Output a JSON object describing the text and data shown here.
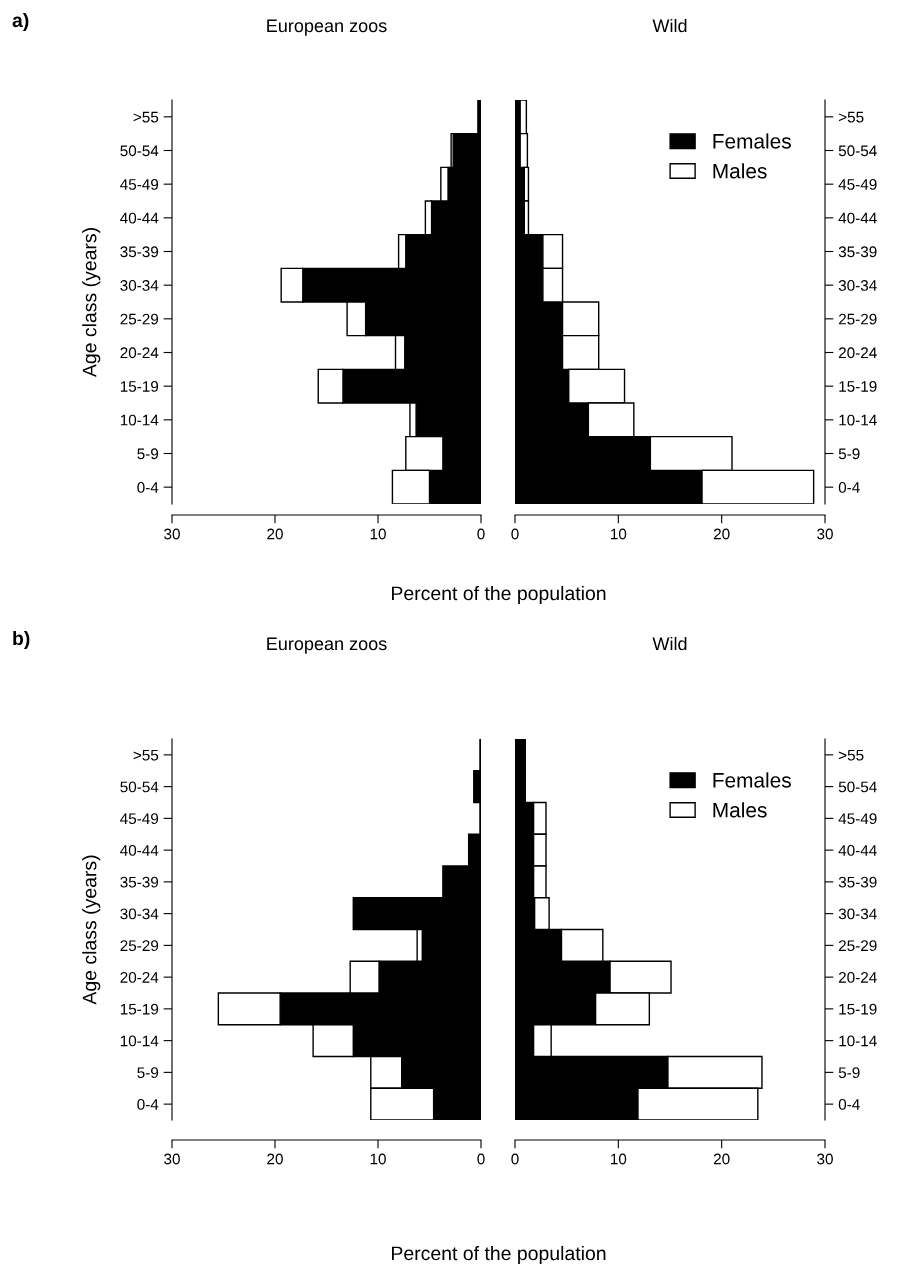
{
  "chart_data": [
    {
      "type": "bar",
      "orientation": "horizontal",
      "stacked": true,
      "title": "European zoos",
      "xlabel": "Percent of the population",
      "ylabel": "Age class (years)",
      "annotations": [
        "a)"
      ],
      "categories": [
        ">55",
        "50-54",
        "45-49",
        "40-44",
        "35-39",
        "30-34",
        "25-29",
        "20-24",
        "15-19",
        "10-14",
        "5-9",
        "0-4"
      ],
      "series": [
        {
          "color": "#000000",
          "values": [
            0.3,
            2.7,
            3.2,
            4.8,
            7.3,
            17.3,
            11.2,
            7.4,
            13.4,
            6.3,
            3.7,
            5.0
          ]
        },
        {
          "color": "#ffffff",
          "values": [
            null,
            0.2,
            0.7,
            0.6,
            0.7,
            2.1,
            1.8,
            0.9,
            2.4,
            0.6,
            3.6,
            3.6
          ]
        }
      ],
      "xlim": [
        30,
        0
      ],
      "xticks": [
        30,
        20,
        10,
        0
      ]
    },
    {
      "type": "bar",
      "orientation": "horizontal",
      "stacked": true,
      "title": "Wild",
      "legend": "top right",
      "categories": [
        ">55",
        "50-54",
        "45-49",
        "40-44",
        "35-39",
        "30-34",
        "25-29",
        "20-24",
        "15-19",
        "10-14",
        "5-9",
        "0-4"
      ],
      "series": [
        {
          "name": "Females",
          "color": "#000000",
          "values": [
            0.5,
            0.5,
            0.9,
            0.9,
            2.7,
            2.7,
            4.6,
            4.6,
            5.2,
            7.1,
            13.1,
            18.1
          ]
        },
        {
          "name": "Males",
          "color": "#ffffff",
          "values": [
            0.6,
            0.7,
            0.4,
            0.4,
            1.9,
            1.9,
            3.5,
            3.5,
            5.4,
            4.4,
            7.9,
            10.8
          ]
        }
      ],
      "xlim": [
        0,
        30
      ],
      "xticks": [
        0,
        10,
        20,
        30
      ]
    },
    {
      "type": "bar",
      "orientation": "horizontal",
      "stacked": true,
      "title": "European zoos",
      "xlabel": "Percent of the population",
      "ylabel": "Age class (years)",
      "annotations": [
        "b)"
      ],
      "categories": [
        ">55",
        "50-54",
        "45-49",
        "40-44",
        "35-39",
        "30-34",
        "25-29",
        "20-24",
        "15-19",
        "10-14",
        "5-9",
        "0-4"
      ],
      "series": [
        {
          "color": "#000000",
          "values": [
            0.1,
            0.7,
            0.1,
            1.2,
            3.7,
            12.4,
            5.7,
            9.9,
            19.5,
            12.4,
            7.7,
            4.6
          ]
        },
        {
          "color": "#ffffff",
          "values": [
            null,
            null,
            null,
            null,
            null,
            null,
            0.5,
            2.8,
            6.0,
            3.9,
            3.0,
            6.1
          ]
        }
      ],
      "xlim": [
        30,
        0
      ],
      "xticks": [
        30,
        20,
        10,
        0
      ]
    },
    {
      "type": "bar",
      "orientation": "horizontal",
      "stacked": true,
      "title": "Wild",
      "legend": "top right",
      "categories": [
        ">55",
        "50-54",
        "45-49",
        "40-44",
        "35-39",
        "30-34",
        "25-29",
        "20-24",
        "15-19",
        "10-14",
        "5-9",
        "0-4"
      ],
      "series": [
        {
          "name": "Females",
          "color": "#000000",
          "values": [
            1.0,
            1.0,
            1.8,
            1.8,
            1.8,
            1.9,
            4.5,
            9.2,
            7.8,
            1.8,
            14.8,
            11.9
          ]
        },
        {
          "name": "Males",
          "color": "#ffffff",
          "values": [
            null,
            null,
            1.2,
            1.2,
            1.2,
            1.4,
            4.0,
            5.9,
            5.2,
            1.7,
            9.1,
            11.6
          ]
        }
      ],
      "xlim": [
        0,
        30
      ],
      "xticks": [
        0,
        10,
        20,
        30
      ]
    }
  ]
}
